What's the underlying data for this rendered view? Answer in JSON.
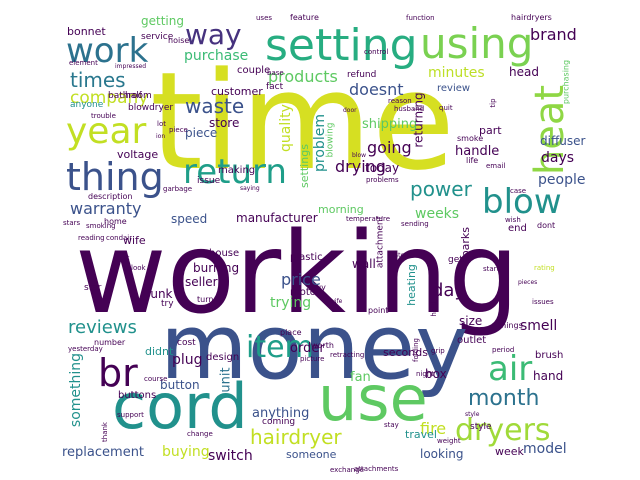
{
  "palette": {
    "purple": "#440154",
    "indigo": "#3b528b",
    "teal": "#21918c",
    "green": "#5ec962",
    "yellow": "#c8d81c"
  },
  "words": [
    {
      "text": "time",
      "color": "#d6df22"
    },
    {
      "text": "working",
      "color": "#440154"
    },
    {
      "text": "money",
      "color": "#3b528b"
    },
    {
      "text": "use",
      "color": "#5ec962"
    },
    {
      "text": "cord",
      "color": "#21918c"
    },
    {
      "text": "setting",
      "color": "#27ad81"
    },
    {
      "text": "using",
      "color": "#7ad151"
    },
    {
      "text": "work",
      "color": "#2c728e"
    },
    {
      "text": "year",
      "color": "#c2df23"
    },
    {
      "text": "heat",
      "color": "#8fd744"
    },
    {
      "text": "thing",
      "color": "#3b528b"
    },
    {
      "text": "return",
      "color": "#1f9e89"
    },
    {
      "text": "blow",
      "color": "#21918c"
    },
    {
      "text": "air",
      "color": "#3bbb75"
    },
    {
      "text": "br",
      "color": "#440154"
    },
    {
      "text": "item",
      "color": "#1f9e89"
    },
    {
      "text": "dryers",
      "color": "#a0da39"
    },
    {
      "text": "month",
      "color": "#2c728e"
    },
    {
      "text": "hairdryer",
      "color": "#c2df23"
    },
    {
      "text": "power",
      "color": "#21918c"
    },
    {
      "text": "way",
      "color": "#46327e"
    },
    {
      "text": "times",
      "color": "#2a788e"
    },
    {
      "text": "company",
      "color": "#c2df23"
    },
    {
      "text": "brand",
      "color": "#440154"
    },
    {
      "text": "products",
      "color": "#5ec962"
    },
    {
      "text": "doesnt",
      "color": "#3b528b"
    },
    {
      "text": "minutes",
      "color": "#bddf26"
    },
    {
      "text": "purchase",
      "color": "#3bbb75"
    },
    {
      "text": "waste",
      "color": "#3b528b"
    },
    {
      "text": "quality",
      "color": "#c2df23"
    },
    {
      "text": "problem",
      "color": "#21918c"
    },
    {
      "text": "going",
      "color": "#440154"
    },
    {
      "text": "drying",
      "color": "#440154"
    },
    {
      "text": "warranty",
      "color": "#3b528b"
    },
    {
      "text": "people",
      "color": "#3b528b"
    },
    {
      "text": "days",
      "color": "#440154"
    },
    {
      "text": "weeks",
      "color": "#5ec962"
    },
    {
      "text": "day",
      "color": "#440154"
    },
    {
      "text": "reviews",
      "color": "#21918c"
    },
    {
      "text": "something",
      "color": "#21918c"
    },
    {
      "text": "unit",
      "color": "#2c728e"
    },
    {
      "text": "fire",
      "color": "#c2df23"
    },
    {
      "text": "model",
      "color": "#3b528b"
    },
    {
      "text": "replacement",
      "color": "#3b528b"
    },
    {
      "text": "buying",
      "color": "#c2df23"
    },
    {
      "text": "switch",
      "color": "#440154"
    },
    {
      "text": "anything",
      "color": "#3b528b"
    },
    {
      "text": "looking",
      "color": "#3b528b"
    },
    {
      "text": "week",
      "color": "#440154"
    },
    {
      "text": "travel",
      "color": "#21918c"
    },
    {
      "text": "price",
      "color": "#3b528b"
    },
    {
      "text": "trying",
      "color": "#5ec962"
    },
    {
      "text": "smell",
      "color": "#440154"
    },
    {
      "text": "plug",
      "color": "#440154"
    },
    {
      "text": "button",
      "color": "#3b528b"
    },
    {
      "text": "order",
      "color": "#440154"
    },
    {
      "text": "fan",
      "color": "#5ec962"
    },
    {
      "text": "box",
      "color": "#440154"
    },
    {
      "text": "hand",
      "color": "#440154"
    },
    {
      "text": "handle",
      "color": "#440154"
    },
    {
      "text": "shipping",
      "color": "#5ec962"
    },
    {
      "text": "today",
      "color": "#440154"
    },
    {
      "text": "diffuser",
      "color": "#3b528b"
    },
    {
      "text": "speed",
      "color": "#3b528b"
    },
    {
      "text": "manufacturer",
      "color": "#440154"
    },
    {
      "text": "burning",
      "color": "#440154"
    },
    {
      "text": "junk",
      "color": "#440154"
    },
    {
      "text": "seller",
      "color": "#440154"
    },
    {
      "text": "wall",
      "color": "#440154"
    },
    {
      "text": "heating",
      "color": "#21918c"
    },
    {
      "text": "voltage",
      "color": "#440154"
    },
    {
      "text": "morning",
      "color": "#5ec962"
    },
    {
      "text": "returning",
      "color": "#440154"
    },
    {
      "text": "sparks",
      "color": "#440154"
    },
    {
      "text": "size",
      "color": "#440154"
    },
    {
      "text": "seconds",
      "color": "#440154"
    },
    {
      "text": "customer",
      "color": "#440154"
    },
    {
      "text": "piece",
      "color": "#3b528b"
    },
    {
      "text": "store",
      "color": "#440154"
    },
    {
      "text": "part",
      "color": "#440154"
    },
    {
      "text": "head",
      "color": "#440154"
    },
    {
      "text": "review",
      "color": "#3b528b"
    },
    {
      "text": "getting",
      "color": "#5ec962"
    },
    {
      "text": "bonnet",
      "color": "#440154"
    },
    {
      "text": "service",
      "color": "#440154"
    },
    {
      "text": "bathroom",
      "color": "#440154"
    },
    {
      "text": "couple",
      "color": "#440154"
    },
    {
      "text": "wife",
      "color": "#440154"
    },
    {
      "text": "house",
      "color": "#440154"
    },
    {
      "text": "buttons",
      "color": "#440154"
    },
    {
      "text": "didnt",
      "color": "#21918c"
    },
    {
      "text": "someone",
      "color": "#3b528b"
    },
    {
      "text": "attachment",
      "color": "#440154"
    },
    {
      "text": "motor",
      "color": "#440154"
    },
    {
      "text": "plastic",
      "color": "#440154"
    },
    {
      "text": "outlet",
      "color": "#440154"
    },
    {
      "text": "end",
      "color": "#440154"
    },
    {
      "text": "brush",
      "color": "#440154"
    },
    {
      "text": "design",
      "color": "#440154"
    },
    {
      "text": "making",
      "color": "#440154"
    },
    {
      "text": "issue",
      "color": "#440154"
    },
    {
      "text": "description",
      "color": "#440154"
    },
    {
      "text": "fact",
      "color": "#440154"
    },
    {
      "text": "refund",
      "color": "#440154"
    },
    {
      "text": "half",
      "color": "#440154"
    },
    {
      "text": "blowdryer",
      "color": "#440154"
    },
    {
      "text": "anyone",
      "color": "#21918c"
    },
    {
      "text": "star",
      "color": "#440154"
    },
    {
      "text": "try",
      "color": "#440154"
    },
    {
      "text": "cost",
      "color": "#440154"
    },
    {
      "text": "coming",
      "color": "#440154"
    },
    {
      "text": "style",
      "color": "#440154"
    },
    {
      "text": "hairdryers",
      "color": "#440154"
    },
    {
      "text": "feature",
      "color": "#440154"
    },
    {
      "text": "smoke",
      "color": "#440154"
    },
    {
      "text": "life",
      "color": "#440154"
    },
    {
      "text": "dont",
      "color": "#440154"
    },
    {
      "text": "point",
      "color": "#440154"
    },
    {
      "text": "things",
      "color": "#440154"
    },
    {
      "text": "worth",
      "color": "#440154"
    },
    {
      "text": "number",
      "color": "#440154"
    },
    {
      "text": "noise",
      "color": "#440154"
    },
    {
      "text": "home",
      "color": "#440154"
    },
    {
      "text": "get",
      "color": "#440154"
    },
    {
      "text": "buy",
      "color": "#440154"
    },
    {
      "text": "turn",
      "color": "#440154"
    },
    {
      "text": "place",
      "color": "#440154"
    },
    {
      "text": "course",
      "color": "#440154"
    },
    {
      "text": "change",
      "color": "#440154"
    },
    {
      "text": "attachments",
      "color": "#440154"
    },
    {
      "text": "purchasing",
      "color": "#5ec962"
    },
    {
      "text": "element",
      "color": "#440154"
    },
    {
      "text": "trouble",
      "color": "#440154"
    },
    {
      "text": "stars",
      "color": "#440154"
    },
    {
      "text": "smoking",
      "color": "#440154"
    },
    {
      "text": "lot",
      "color": "#440154"
    },
    {
      "text": "quit",
      "color": "#440154"
    },
    {
      "text": "control",
      "color": "#440154"
    },
    {
      "text": "function",
      "color": "#440154"
    },
    {
      "text": "uses",
      "color": "#440154"
    },
    {
      "text": "piece",
      "color": "#440154"
    },
    {
      "text": "husband",
      "color": "#440154"
    },
    {
      "text": "reason",
      "color": "#440154"
    },
    {
      "text": "garbage",
      "color": "#440154"
    },
    {
      "text": "issues",
      "color": "#440154"
    },
    {
      "text": "yesterday",
      "color": "#440154"
    },
    {
      "text": "night",
      "color": "#440154"
    },
    {
      "text": "picture",
      "color": "#440154"
    },
    {
      "text": "period",
      "color": "#440154"
    },
    {
      "text": "weight",
      "color": "#440154"
    },
    {
      "text": "stay",
      "color": "#440154"
    },
    {
      "text": "exchange",
      "color": "#440154"
    },
    {
      "text": "support",
      "color": "#440154"
    },
    {
      "text": "thank",
      "color": "#440154"
    },
    {
      "text": "temperature",
      "color": "#440154"
    },
    {
      "text": "problems",
      "color": "#440154"
    },
    {
      "text": "reading",
      "color": "#440154"
    },
    {
      "text": "settings",
      "color": "#5ec962"
    },
    {
      "text": "retracting",
      "color": "#440154"
    },
    {
      "text": "look",
      "color": "#440154"
    },
    {
      "text": "start",
      "color": "#440154"
    },
    {
      "text": "blowing",
      "color": "#5ec962"
    },
    {
      "text": "grip",
      "color": "#440154"
    },
    {
      "text": "sending",
      "color": "#440154"
    },
    {
      "text": "hold",
      "color": "#440154"
    },
    {
      "text": "folding",
      "color": "#440154"
    },
    {
      "text": "wish",
      "color": "#440154"
    },
    {
      "text": "email",
      "color": "#440154"
    },
    {
      "text": "condair",
      "color": "#440154"
    },
    {
      "text": "rating",
      "color": "#c2df23"
    },
    {
      "text": "case",
      "color": "#440154"
    },
    {
      "text": "base",
      "color": "#440154"
    },
    {
      "text": "ion",
      "color": "#440154"
    },
    {
      "text": "cat",
      "color": "#440154"
    },
    {
      "text": "tip",
      "color": "#440154"
    },
    {
      "text": "saying",
      "color": "#440154"
    },
    {
      "text": "impressed",
      "color": "#440154"
    },
    {
      "text": "door",
      "color": "#440154"
    },
    {
      "text": "pieces",
      "color": "#440154"
    },
    {
      "text": "store",
      "color": "#440154"
    },
    {
      "text": "wife",
      "color": "#440154"
    },
    {
      "text": "style",
      "color": "#440154"
    },
    {
      "text": "blow",
      "color": "#440154"
    }
  ]
}
